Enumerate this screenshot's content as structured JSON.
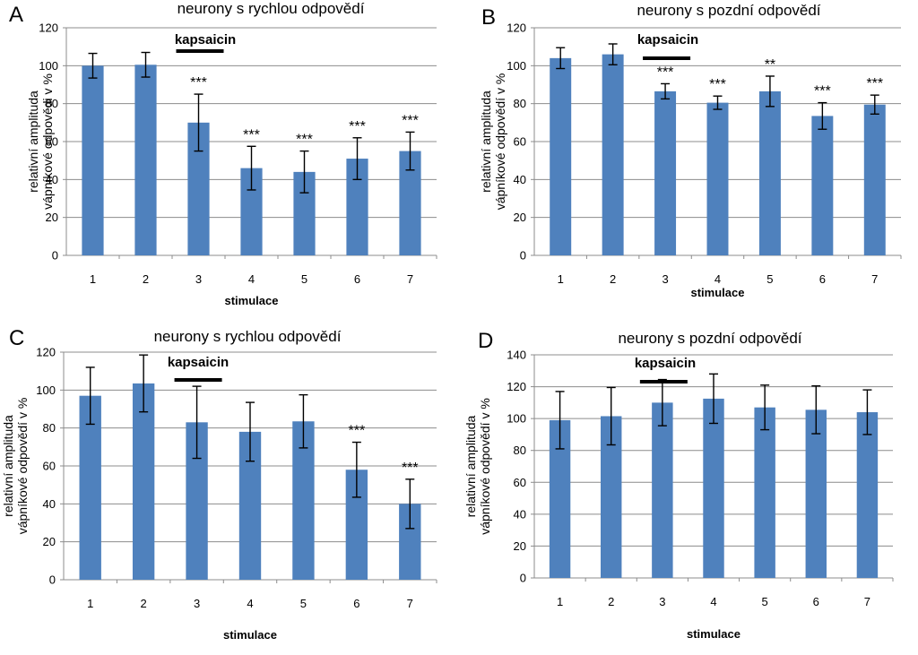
{
  "chart_data": [
    {
      "panel": "A",
      "type": "bar",
      "title": "neurony s rychlou odpovědí",
      "xlabel": "stimulace",
      "ylabel": [
        "relativní amplituda",
        "vápníkové odpovědi v  %"
      ],
      "categories": [
        "1",
        "2",
        "3",
        "4",
        "5",
        "6",
        "7"
      ],
      "values": [
        100,
        100.5,
        70,
        46,
        44,
        51,
        55
      ],
      "errors": [
        6.5,
        6.5,
        15,
        11.5,
        11,
        11,
        10
      ],
      "significance": [
        "",
        "",
        "***",
        "***",
        "***",
        "***",
        "***"
      ],
      "ylim": [
        0,
        120
      ],
      "yticks": [
        0,
        20,
        40,
        60,
        80,
        100,
        120
      ],
      "annotation": {
        "text": "kapsaicin",
        "under_category": "3"
      },
      "color": "#4f81bd"
    },
    {
      "panel": "B",
      "type": "bar",
      "title": "neurony s pozdní odpovědí",
      "xlabel": "stimulace",
      "ylabel": [
        "relativní amplituda",
        "vápníkové odpovědí v  %"
      ],
      "categories": [
        "1",
        "2",
        "3",
        "4",
        "5",
        "6",
        "7"
      ],
      "values": [
        104,
        106,
        86.5,
        80.5,
        86.5,
        73.5,
        79.5
      ],
      "errors": [
        5.5,
        5.5,
        4,
        3.5,
        8,
        7,
        5
      ],
      "significance": [
        "",
        "",
        "***",
        "***",
        "**",
        "***",
        "***"
      ],
      "ylim": [
        0,
        120
      ],
      "yticks": [
        0,
        20,
        40,
        60,
        80,
        100,
        120
      ],
      "annotation": {
        "text": "kapsaicin",
        "under_category": "3"
      },
      "color": "#4f81bd"
    },
    {
      "panel": "C",
      "type": "bar",
      "title": "neurony s rychlou odpovědí",
      "xlabel": "stimulace",
      "ylabel": [
        "relativní amplituda",
        "vápníkové odpovědí v  %"
      ],
      "categories": [
        "1",
        "2",
        "3",
        "4",
        "5",
        "6",
        "7"
      ],
      "values": [
        97,
        103.5,
        83,
        78,
        83.5,
        58,
        40
      ],
      "errors": [
        15,
        15,
        19,
        15.5,
        14,
        14.5,
        13
      ],
      "significance": [
        "",
        "",
        "",
        "",
        "",
        "***",
        "***"
      ],
      "ylim": [
        0,
        120
      ],
      "yticks": [
        0,
        20,
        40,
        60,
        80,
        100,
        120
      ],
      "annotation": {
        "text": "kapsaicin",
        "under_category": "3"
      },
      "color": "#4f81bd"
    },
    {
      "panel": "D",
      "type": "bar",
      "title": "neurony s pozdní odpovědí",
      "xlabel": "stimulace",
      "ylabel": [
        "relativní amplituda",
        "vápníkové odpovědí v  %"
      ],
      "categories": [
        "1",
        "2",
        "3",
        "4",
        "5",
        "6",
        "7"
      ],
      "values": [
        99,
        101.5,
        110,
        112.5,
        107,
        105.5,
        104
      ],
      "errors": [
        18,
        18,
        14.5,
        15.5,
        14,
        15,
        14
      ],
      "significance": [
        "",
        "",
        "",
        "",
        "",
        "",
        ""
      ],
      "ylim": [
        0,
        140
      ],
      "yticks": [
        0,
        20,
        40,
        60,
        80,
        100,
        120,
        140
      ],
      "annotation": {
        "text": "kapsaicin",
        "under_category": "3"
      },
      "color": "#4f81bd"
    }
  ]
}
